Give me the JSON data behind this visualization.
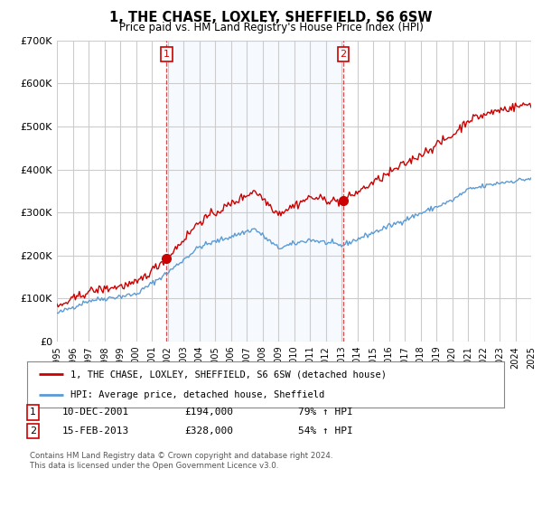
{
  "title": "1, THE CHASE, LOXLEY, SHEFFIELD, S6 6SW",
  "subtitle": "Price paid vs. HM Land Registry's House Price Index (HPI)",
  "legend_line1": "1, THE CHASE, LOXLEY, SHEFFIELD, S6 6SW (detached house)",
  "legend_line2": "HPI: Average price, detached house, Sheffield",
  "footnote1": "Contains HM Land Registry data © Crown copyright and database right 2024.",
  "footnote2": "This data is licensed under the Open Government Licence v3.0.",
  "sale1_label": "1",
  "sale1_date": "10-DEC-2001",
  "sale1_price": "£194,000",
  "sale1_hpi": "79% ↑ HPI",
  "sale2_label": "2",
  "sale2_date": "15-FEB-2013",
  "sale2_price": "£328,000",
  "sale2_hpi": "54% ↑ HPI",
  "sale1_x": 2001.94,
  "sale1_y": 194000,
  "sale2_x": 2013.12,
  "sale2_y": 328000,
  "hpi_color": "#5b9bd5",
  "price_color": "#cc0000",
  "vline_color": "#cc0000",
  "shade_color": "#ddeeff",
  "xmin": 1995,
  "xmax": 2025,
  "ymin": 0,
  "ymax": 700000,
  "yticks": [
    0,
    100000,
    200000,
    300000,
    400000,
    500000,
    600000,
    700000
  ],
  "ytick_labels": [
    "£0",
    "£100K",
    "£200K",
    "£300K",
    "£400K",
    "£500K",
    "£600K",
    "£700K"
  ],
  "xticks": [
    1995,
    1996,
    1997,
    1998,
    1999,
    2000,
    2001,
    2002,
    2003,
    2004,
    2005,
    2006,
    2007,
    2008,
    2009,
    2010,
    2011,
    2012,
    2013,
    2014,
    2015,
    2016,
    2017,
    2018,
    2019,
    2020,
    2021,
    2022,
    2023,
    2024,
    2025
  ],
  "bg_color": "#ffffff",
  "plot_bg_color": "#ffffff",
  "grid_color": "#cccccc"
}
